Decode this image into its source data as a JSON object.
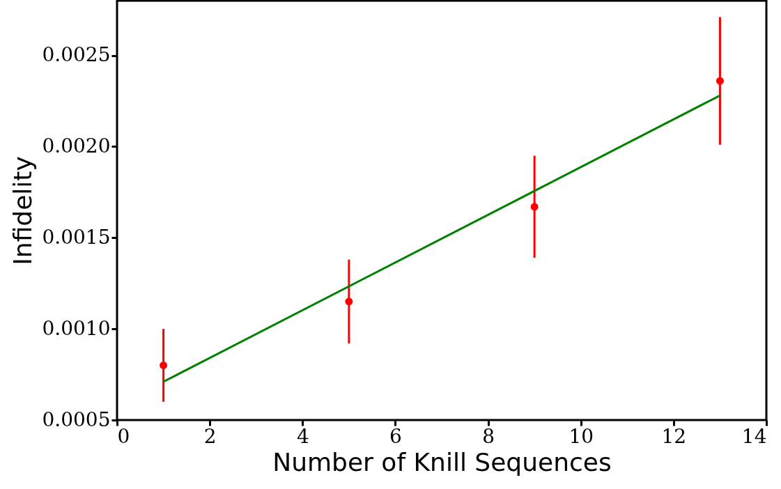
{
  "chart_data": {
    "type": "scatter",
    "xlabel": "Number of Knill Sequences",
    "ylabel": "Infidelity",
    "x": [
      1,
      5,
      9,
      13
    ],
    "xlim": [
      0,
      14
    ],
    "xticks": [
      0,
      2,
      4,
      6,
      8,
      10,
      12,
      14
    ],
    "ylim": [
      0.0005,
      0.0028
    ],
    "yticks": [
      0.0005,
      {
        "value": 0.001,
        "label": "0.0010"
      },
      0.0015,
      {
        "value": 0.002,
        "label": "0.0020"
      },
      0.0025
    ],
    "grid": false,
    "series": [
      {
        "color": "#ff0000",
        "marker": "circle",
        "values": [
          0.0008,
          0.00115,
          0.00167,
          0.00236
        ],
        "errors": [
          0.0002,
          0.00023,
          0.00028,
          0.00035
        ]
      },
      {
        "type": "line",
        "color": "#008000",
        "x": [
          1,
          13
        ],
        "values": [
          0.00071,
          0.00228
        ],
        "line_style": "solid"
      }
    ]
  }
}
